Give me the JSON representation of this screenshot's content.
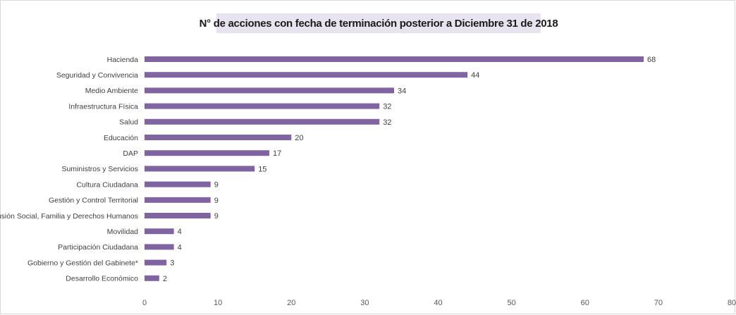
{
  "chart_data": {
    "type": "bar",
    "orientation": "horizontal",
    "title": "N° de acciones con fecha de terminación posterior a  Diciembre 31 de 2018",
    "categories": [
      "Hacienda",
      "Seguridad y Convivencia",
      "Medio Ambiente",
      "Infraestructura Física",
      "Salud",
      "Educación",
      "DAP",
      "Suministros y Servicios",
      "Cultura Ciudadana",
      "Gestión y Control Territorial",
      "Inclusión Social, Familia y Derechos Humanos",
      "Movilidad",
      "Participación Ciudadana",
      "Gobierno y Gestión del Gabinete*",
      "Desarrollo Económico"
    ],
    "values": [
      68,
      44,
      34,
      32,
      32,
      20,
      17,
      15,
      9,
      9,
      9,
      4,
      4,
      3,
      2
    ],
    "value_labels": [
      "68",
      "44",
      "34",
      "32",
      "32",
      "20",
      "17",
      "15",
      "9",
      "9",
      "9",
      "4",
      "4",
      "3",
      "2"
    ],
    "xlim": [
      0,
      80
    ],
    "xticks": [
      "0",
      "10",
      "20",
      "30",
      "40",
      "50",
      "60",
      "70",
      "80"
    ],
    "bar_color": "#8064a2",
    "title_background": "#e8e4ef",
    "grid": false,
    "legend": "none"
  }
}
